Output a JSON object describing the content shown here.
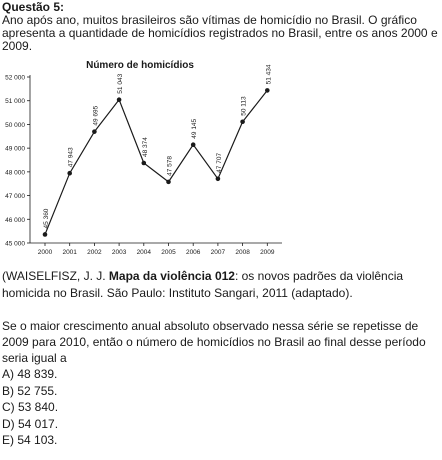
{
  "question": {
    "title": "Questão 5:",
    "intro": "Ano após ano, muitos brasileiros são vítimas de homicídio no Brasil. O gráfico apresenta a quantidade de homicídios registrados no Brasil, entre os anos 2000 e 2009.",
    "source_prefix": "(WAISELFISZ, J. J. ",
    "source_bold": "Mapa da violência 012",
    "source_suffix": ": os novos padrões da violência homicida no Brasil. São Paulo: Instituto Sangari, 2011 (adaptado).",
    "prompt": "Se o maior crescimento anual absoluto observado nessa série se repetisse de 2009 para 2010, então o número de homicídios no Brasil ao final desse período seria igual a",
    "options": [
      "A) 48 839.",
      "B) 52 755.",
      "C) 53 840.",
      "D) 54 017.",
      "E) 54 103."
    ]
  },
  "chart_data": {
    "type": "line",
    "title": "Número de homicídios",
    "categories": [
      "2000",
      "2001",
      "2002",
      "2003",
      "2004",
      "2005",
      "2006",
      "2007",
      "2008",
      "2009"
    ],
    "values": [
      45360,
      47943,
      49695,
      51043,
      48374,
      47578,
      49145,
      47707,
      50113,
      51434
    ],
    "point_labels": [
      "45 360",
      "47 943",
      "49 695",
      "51 043",
      "48 374",
      "47 578",
      "49 145",
      "47 707",
      "50 113",
      "51 434"
    ],
    "y_ticks": [
      45000,
      46000,
      47000,
      48000,
      49000,
      50000,
      51000,
      52000
    ],
    "y_tick_labels": [
      "45 000",
      "46 000",
      "47 000",
      "48 000",
      "49 000",
      "50 000",
      "51 000",
      "52 000"
    ],
    "ylim": [
      45000,
      52000
    ],
    "xlabel": "",
    "ylabel": "",
    "grid": false,
    "line_color": "#1a1a1a"
  }
}
